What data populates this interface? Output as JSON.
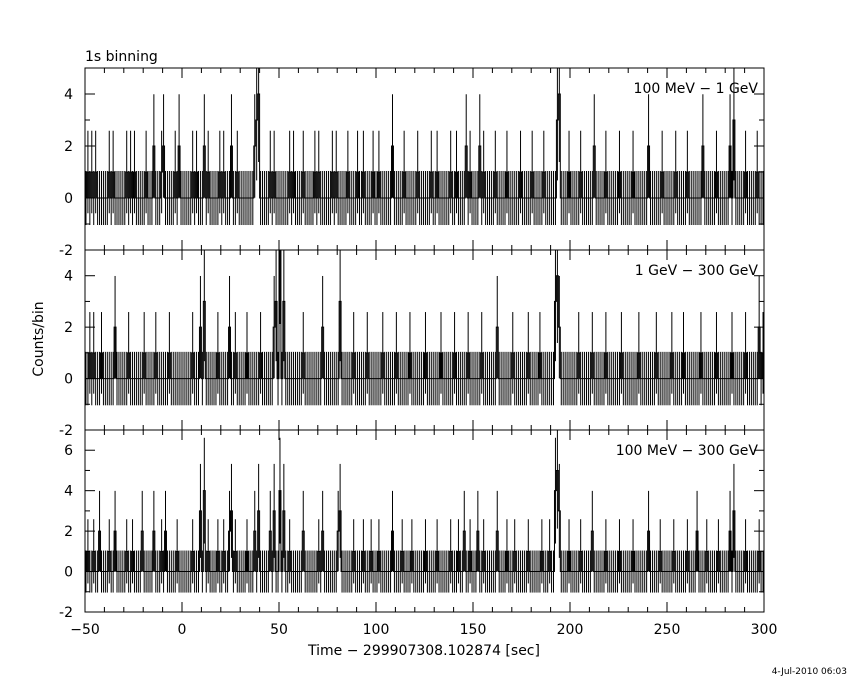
{
  "chart_data": {
    "type": "line",
    "title": "1s binning",
    "xlabel": "Time − 299907308.102874 [sec]",
    "ylabel": "Counts/bin",
    "xlim": [
      -50,
      300
    ],
    "x_ticks": [
      -50,
      0,
      50,
      100,
      150,
      200,
      250,
      300
    ],
    "timestamp": "4-Jul-2010 06:03",
    "bin_width": 1,
    "panels": [
      {
        "name": "100 MeV − 1 GeV",
        "ylim": [
          -2,
          5
        ],
        "y_ticks": [
          -2,
          0,
          2,
          4
        ],
        "error_factor": 1.2,
        "events": [
          {
            "x": -49,
            "c": 1
          },
          {
            "x": -47,
            "c": 1
          },
          {
            "x": -45,
            "c": 1
          },
          {
            "x": -38,
            "c": 1
          },
          {
            "x": -36,
            "c": 1
          },
          {
            "x": -29,
            "c": 1
          },
          {
            "x": -27,
            "c": 1
          },
          {
            "x": -25,
            "c": 1
          },
          {
            "x": -19,
            "c": 1
          },
          {
            "x": -15,
            "c": 2
          },
          {
            "x": -11,
            "c": 1
          },
          {
            "x": -10,
            "c": 2
          },
          {
            "x": -4,
            "c": 1
          },
          {
            "x": -2,
            "c": 2
          },
          {
            "x": 5,
            "c": 1
          },
          {
            "x": 7,
            "c": 1
          },
          {
            "x": 11,
            "c": 2
          },
          {
            "x": 13,
            "c": 1
          },
          {
            "x": 19,
            "c": 1
          },
          {
            "x": 21,
            "c": 1
          },
          {
            "x": 25,
            "c": 2
          },
          {
            "x": 28,
            "c": 1
          },
          {
            "x": 37,
            "c": 2
          },
          {
            "x": 38,
            "c": 3
          },
          {
            "x": 39,
            "c": 4
          },
          {
            "x": 45,
            "c": 1
          },
          {
            "x": 47,
            "c": 1
          },
          {
            "x": 55,
            "c": 1
          },
          {
            "x": 57,
            "c": 1
          },
          {
            "x": 62,
            "c": 1
          },
          {
            "x": 68,
            "c": 1
          },
          {
            "x": 70,
            "c": 1
          },
          {
            "x": 77,
            "c": 1
          },
          {
            "x": 79,
            "c": 1
          },
          {
            "x": 85,
            "c": 1
          },
          {
            "x": 90,
            "c": 1
          },
          {
            "x": 93,
            "c": 1
          },
          {
            "x": 98,
            "c": 1
          },
          {
            "x": 101,
            "c": 1
          },
          {
            "x": 108,
            "c": 2
          },
          {
            "x": 114,
            "c": 1
          },
          {
            "x": 121,
            "c": 1
          },
          {
            "x": 128,
            "c": 1
          },
          {
            "x": 131,
            "c": 1
          },
          {
            "x": 138,
            "c": 1
          },
          {
            "x": 141,
            "c": 1
          },
          {
            "x": 146,
            "c": 2
          },
          {
            "x": 148,
            "c": 1
          },
          {
            "x": 153,
            "c": 2
          },
          {
            "x": 155,
            "c": 1
          },
          {
            "x": 161,
            "c": 1
          },
          {
            "x": 167,
            "c": 1
          },
          {
            "x": 174,
            "c": 1
          },
          {
            "x": 180,
            "c": 1
          },
          {
            "x": 186,
            "c": 1
          },
          {
            "x": 193,
            "c": 3
          },
          {
            "x": 194,
            "c": 4
          },
          {
            "x": 199,
            "c": 1
          },
          {
            "x": 205,
            "c": 1
          },
          {
            "x": 212,
            "c": 2
          },
          {
            "x": 218,
            "c": 1
          },
          {
            "x": 225,
            "c": 1
          },
          {
            "x": 232,
            "c": 1
          },
          {
            "x": 240,
            "c": 2
          },
          {
            "x": 247,
            "c": 1
          },
          {
            "x": 254,
            "c": 1
          },
          {
            "x": 260,
            "c": 1
          },
          {
            "x": 268,
            "c": 2
          },
          {
            "x": 275,
            "c": 1
          },
          {
            "x": 282,
            "c": 2
          },
          {
            "x": 284,
            "c": 3
          },
          {
            "x": 290,
            "c": 1
          },
          {
            "x": 296,
            "c": 1
          }
        ]
      },
      {
        "name": "1 GeV − 300 GeV",
        "ylim": [
          -2,
          5
        ],
        "y_ticks": [
          -2,
          0,
          2,
          4
        ],
        "error_factor": 1.2,
        "events": [
          {
            "x": -48,
            "c": 1
          },
          {
            "x": -46,
            "c": 1
          },
          {
            "x": -42,
            "c": 1
          },
          {
            "x": -35,
            "c": 2
          },
          {
            "x": -28,
            "c": 1
          },
          {
            "x": -20,
            "c": 1
          },
          {
            "x": -14,
            "c": 1
          },
          {
            "x": -7,
            "c": 1
          },
          {
            "x": 5,
            "c": 1
          },
          {
            "x": 9,
            "c": 2
          },
          {
            "x": 11,
            "c": 3
          },
          {
            "x": 18,
            "c": 1
          },
          {
            "x": 24,
            "c": 2
          },
          {
            "x": 27,
            "c": 1
          },
          {
            "x": 33,
            "c": 1
          },
          {
            "x": 40,
            "c": 1
          },
          {
            "x": 47,
            "c": 2
          },
          {
            "x": 48,
            "c": 3
          },
          {
            "x": 50,
            "c": 5
          },
          {
            "x": 52,
            "c": 3
          },
          {
            "x": 62,
            "c": 1
          },
          {
            "x": 72,
            "c": 2
          },
          {
            "x": 81,
            "c": 3
          },
          {
            "x": 88,
            "c": 1
          },
          {
            "x": 95,
            "c": 1
          },
          {
            "x": 103,
            "c": 1
          },
          {
            "x": 110,
            "c": 1
          },
          {
            "x": 117,
            "c": 1
          },
          {
            "x": 125,
            "c": 1
          },
          {
            "x": 133,
            "c": 1
          },
          {
            "x": 140,
            "c": 1
          },
          {
            "x": 147,
            "c": 1
          },
          {
            "x": 154,
            "c": 1
          },
          {
            "x": 162,
            "c": 2
          },
          {
            "x": 170,
            "c": 1
          },
          {
            "x": 178,
            "c": 1
          },
          {
            "x": 184,
            "c": 1
          },
          {
            "x": 192,
            "c": 3
          },
          {
            "x": 193,
            "c": 4
          },
          {
            "x": 194,
            "c": 2
          },
          {
            "x": 204,
            "c": 1
          },
          {
            "x": 211,
            "c": 1
          },
          {
            "x": 218,
            "c": 1
          },
          {
            "x": 226,
            "c": 1
          },
          {
            "x": 235,
            "c": 1
          },
          {
            "x": 244,
            "c": 1
          },
          {
            "x": 252,
            "c": 1
          },
          {
            "x": 258,
            "c": 1
          },
          {
            "x": 267,
            "c": 1
          },
          {
            "x": 275,
            "c": 1
          },
          {
            "x": 283,
            "c": 1
          },
          {
            "x": 290,
            "c": 1
          },
          {
            "x": 297,
            "c": 2
          },
          {
            "x": 299,
            "c": 1
          }
        ]
      },
      {
        "name": "100 MeV − 300 GeV",
        "ylim": [
          -2,
          7
        ],
        "y_ticks": [
          -2,
          0,
          2,
          4,
          6
        ],
        "error_factor": 1.2,
        "events": [
          {
            "x": -49,
            "c": 1
          },
          {
            "x": -46,
            "c": 1
          },
          {
            "x": -43,
            "c": 2
          },
          {
            "x": -38,
            "c": 1
          },
          {
            "x": -35,
            "c": 2
          },
          {
            "x": -29,
            "c": 1
          },
          {
            "x": -26,
            "c": 1
          },
          {
            "x": -21,
            "c": 2
          },
          {
            "x": -15,
            "c": 2
          },
          {
            "x": -11,
            "c": 1
          },
          {
            "x": -9,
            "c": 2
          },
          {
            "x": -3,
            "c": 1
          },
          {
            "x": 5,
            "c": 1
          },
          {
            "x": 9,
            "c": 3
          },
          {
            "x": 11,
            "c": 4
          },
          {
            "x": 13,
            "c": 1
          },
          {
            "x": 18,
            "c": 1
          },
          {
            "x": 21,
            "c": 1
          },
          {
            "x": 24,
            "c": 2
          },
          {
            "x": 25,
            "c": 3
          },
          {
            "x": 27,
            "c": 1
          },
          {
            "x": 33,
            "c": 1
          },
          {
            "x": 37,
            "c": 2
          },
          {
            "x": 39,
            "c": 3
          },
          {
            "x": 45,
            "c": 2
          },
          {
            "x": 47,
            "c": 3
          },
          {
            "x": 50,
            "c": 4
          },
          {
            "x": 52,
            "c": 3
          },
          {
            "x": 55,
            "c": 1
          },
          {
            "x": 62,
            "c": 2
          },
          {
            "x": 70,
            "c": 1
          },
          {
            "x": 72,
            "c": 2
          },
          {
            "x": 80,
            "c": 2
          },
          {
            "x": 81,
            "c": 3
          },
          {
            "x": 88,
            "c": 1
          },
          {
            "x": 93,
            "c": 1
          },
          {
            "x": 97,
            "c": 1
          },
          {
            "x": 101,
            "c": 1
          },
          {
            "x": 108,
            "c": 2
          },
          {
            "x": 113,
            "c": 1
          },
          {
            "x": 118,
            "c": 1
          },
          {
            "x": 125,
            "c": 1
          },
          {
            "x": 131,
            "c": 1
          },
          {
            "x": 138,
            "c": 1
          },
          {
            "x": 142,
            "c": 1
          },
          {
            "x": 145,
            "c": 2
          },
          {
            "x": 148,
            "c": 1
          },
          {
            "x": 152,
            "c": 2
          },
          {
            "x": 155,
            "c": 1
          },
          {
            "x": 162,
            "c": 2
          },
          {
            "x": 167,
            "c": 1
          },
          {
            "x": 171,
            "c": 1
          },
          {
            "x": 178,
            "c": 1
          },
          {
            "x": 185,
            "c": 1
          },
          {
            "x": 189,
            "c": 1
          },
          {
            "x": 192,
            "c": 4
          },
          {
            "x": 193,
            "c": 5
          },
          {
            "x": 194,
            "c": 3
          },
          {
            "x": 199,
            "c": 1
          },
          {
            "x": 205,
            "c": 1
          },
          {
            "x": 211,
            "c": 2
          },
          {
            "x": 218,
            "c": 1
          },
          {
            "x": 225,
            "c": 1
          },
          {
            "x": 232,
            "c": 1
          },
          {
            "x": 240,
            "c": 2
          },
          {
            "x": 246,
            "c": 1
          },
          {
            "x": 253,
            "c": 1
          },
          {
            "x": 260,
            "c": 1
          },
          {
            "x": 265,
            "c": 2
          },
          {
            "x": 270,
            "c": 1
          },
          {
            "x": 276,
            "c": 1
          },
          {
            "x": 282,
            "c": 2
          },
          {
            "x": 284,
            "c": 3
          },
          {
            "x": 290,
            "c": 1
          },
          {
            "x": 297,
            "c": 1
          }
        ]
      }
    ]
  }
}
